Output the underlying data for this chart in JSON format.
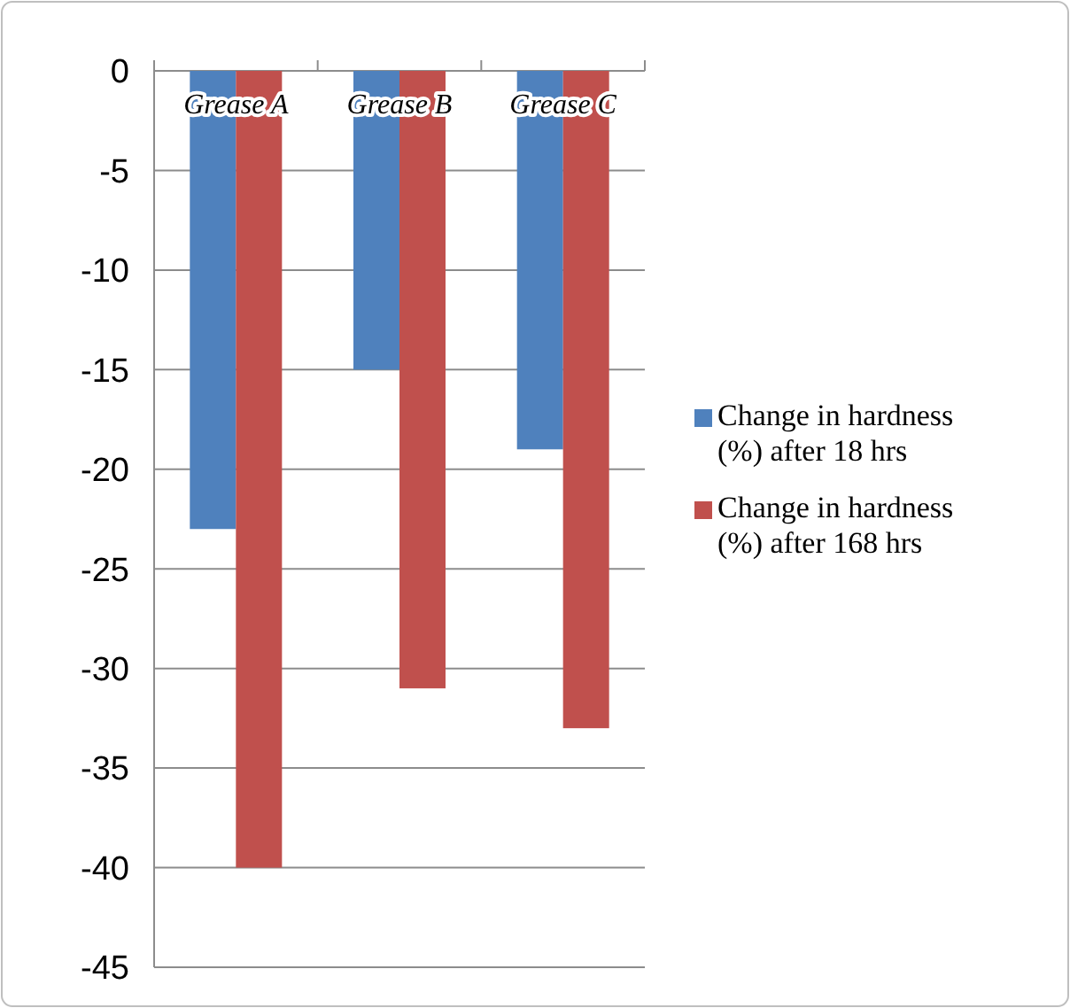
{
  "chart_data": {
    "type": "bar",
    "categories": [
      "Grease A",
      "Grease B",
      "Grease C"
    ],
    "series": [
      {
        "name": "Change in hardness (%) after 18 hrs",
        "color": "#4f81bd",
        "values": [
          -23,
          -15,
          -19
        ]
      },
      {
        "name": "Change in hardness (%) after 168 hrs",
        "color": "#c0504d",
        "values": [
          -40,
          -31,
          -33
        ]
      }
    ],
    "ylim": [
      -45,
      0
    ],
    "yticks": [
      0,
      -5,
      -10,
      -15,
      -20,
      -25,
      -30,
      -35,
      -40,
      -45
    ],
    "grid": "y",
    "legend": "right"
  }
}
